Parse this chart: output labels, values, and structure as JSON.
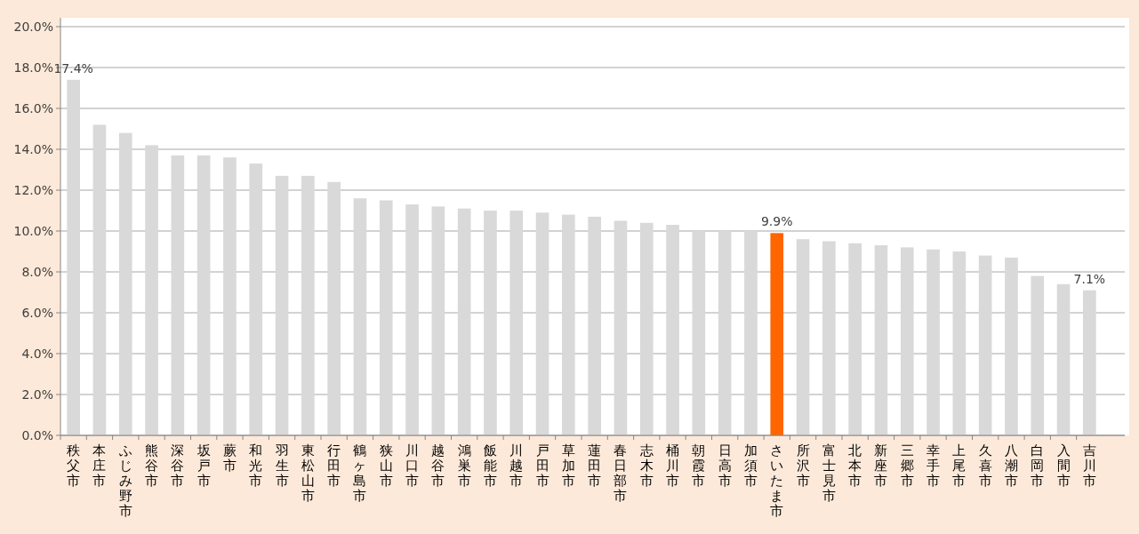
{
  "chart_data": {
    "type": "bar",
    "categories": [
      "秩父市",
      "本庄市",
      "ふじみ野市",
      "熊谷市",
      "深谷市",
      "坂戸市",
      "蕨市",
      "和光市",
      "羽生市",
      "東松山市",
      "行田市",
      "鶴ヶ島市",
      "狭山市",
      "川口市",
      "越谷市",
      "鴻巣市",
      "飯能市",
      "川越市",
      "戸田市",
      "草加市",
      "蓮田市",
      "春日部市",
      "志木市",
      "桶川市",
      "朝霞市",
      "日高市",
      "加須市",
      "さいたま市",
      "所沢市",
      "富士見市",
      "北本市",
      "新座市",
      "三郷市",
      "幸手市",
      "上尾市",
      "久喜市",
      "八潮市",
      "白岡市",
      "入間市",
      "吉川市"
    ],
    "values": [
      17.4,
      15.2,
      14.8,
      14.2,
      13.7,
      13.7,
      13.6,
      13.3,
      12.7,
      12.7,
      12.4,
      11.6,
      11.5,
      11.3,
      11.2,
      11.1,
      11.0,
      11.0,
      10.9,
      10.8,
      10.7,
      10.5,
      10.4,
      10.3,
      10.0,
      10.0,
      10.0,
      9.9,
      9.6,
      9.5,
      9.4,
      9.3,
      9.2,
      9.1,
      9.0,
      8.8,
      8.7,
      7.8,
      7.4,
      7.1
    ],
    "colors": [
      "#d9d9d9",
      "#d9d9d9",
      "#d9d9d9",
      "#d9d9d9",
      "#d9d9d9",
      "#d9d9d9",
      "#d9d9d9",
      "#d9d9d9",
      "#d9d9d9",
      "#d9d9d9",
      "#d9d9d9",
      "#d9d9d9",
      "#d9d9d9",
      "#d9d9d9",
      "#d9d9d9",
      "#d9d9d9",
      "#d9d9d9",
      "#d9d9d9",
      "#d9d9d9",
      "#d9d9d9",
      "#d9d9d9",
      "#d9d9d9",
      "#d9d9d9",
      "#d9d9d9",
      "#d9d9d9",
      "#d9d9d9",
      "#d9d9d9",
      "#ff6600",
      "#d9d9d9",
      "#d9d9d9",
      "#d9d9d9",
      "#d9d9d9",
      "#d9d9d9",
      "#d9d9d9",
      "#d9d9d9",
      "#d9d9d9",
      "#d9d9d9",
      "#d9d9d9",
      "#d9d9d9",
      "#d9d9d9"
    ],
    "value_labels": [
      "17.4%",
      null,
      null,
      null,
      null,
      null,
      null,
      null,
      null,
      null,
      null,
      null,
      null,
      null,
      null,
      null,
      null,
      null,
      null,
      null,
      null,
      null,
      null,
      null,
      null,
      null,
      null,
      "9.9%",
      null,
      null,
      null,
      null,
      null,
      null,
      null,
      null,
      null,
      null,
      null,
      "7.1%"
    ],
    "ylim": [
      0,
      20
    ],
    "yticks": [
      {
        "value": 0,
        "label": "0.0%"
      },
      {
        "value": 2,
        "label": "2.0%"
      },
      {
        "value": 4,
        "label": "4.0%"
      },
      {
        "value": 6,
        "label": "6.0%"
      },
      {
        "value": 8,
        "label": "8.0%"
      },
      {
        "value": 10,
        "label": "10.0%"
      },
      {
        "value": 12,
        "label": "12.0%"
      },
      {
        "value": 14,
        "label": "14.0%"
      },
      {
        "value": 16,
        "label": "16.0%"
      },
      {
        "value": 18,
        "label": "18.0%"
      },
      {
        "value": 20,
        "label": "20.0%"
      }
    ],
    "grid": "y"
  }
}
